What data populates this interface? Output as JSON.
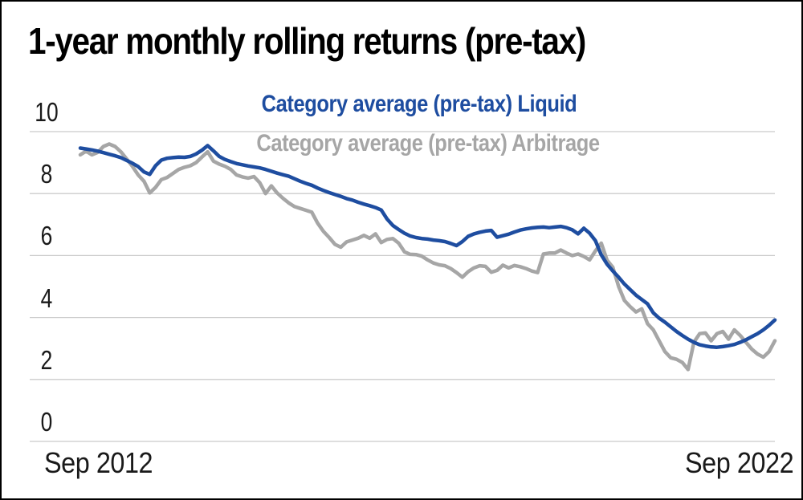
{
  "chart_data": {
    "type": "line",
    "title": "1-year monthly rolling returns (pre-tax)",
    "x_axis": {
      "start_label": "Sep 2012",
      "end_label": "Sep 2022",
      "unit": "month",
      "points": 121
    },
    "y_axis": {
      "ticks": [
        10,
        8,
        6,
        4,
        2,
        0
      ],
      "range": [
        0,
        10
      ],
      "grid": true
    },
    "grid_color": "#cbcbcb",
    "axis_label_color": "#1a1a1a",
    "legend_position": "top-center",
    "legend": [
      {
        "key": "liquid",
        "label": "Category average (pre-tax) Liquid",
        "color": "#1e4da0"
      },
      {
        "key": "arbitrage",
        "label": "Category average (pre-tax) Arbitrage",
        "color": "#a6a6a6"
      }
    ],
    "series": [
      {
        "key": "liquid",
        "name": "Category average (pre-tax) Liquid",
        "color": "#1e4da0",
        "values": [
          9.47,
          9.44,
          9.41,
          9.37,
          9.32,
          9.27,
          9.22,
          9.16,
          9.07,
          8.98,
          8.87,
          8.7,
          8.62,
          8.9,
          9.08,
          9.14,
          9.16,
          9.18,
          9.17,
          9.2,
          9.28,
          9.4,
          9.55,
          9.38,
          9.2,
          9.1,
          9.03,
          8.97,
          8.93,
          8.89,
          8.86,
          8.83,
          8.78,
          8.72,
          8.66,
          8.61,
          8.56,
          8.48,
          8.4,
          8.33,
          8.27,
          8.18,
          8.1,
          8.03,
          7.97,
          7.91,
          7.84,
          7.79,
          7.72,
          7.66,
          7.61,
          7.55,
          7.47,
          7.18,
          6.97,
          6.84,
          6.72,
          6.63,
          6.58,
          6.55,
          6.53,
          6.5,
          6.48,
          6.45,
          6.39,
          6.32,
          6.45,
          6.62,
          6.7,
          6.75,
          6.79,
          6.81,
          6.59,
          6.64,
          6.69,
          6.76,
          6.82,
          6.86,
          6.89,
          6.91,
          6.92,
          6.9,
          6.92,
          6.94,
          6.9,
          6.83,
          6.7,
          6.88,
          6.72,
          6.48,
          6.02,
          5.72,
          5.5,
          5.3,
          5.08,
          4.9,
          4.72,
          4.58,
          4.44,
          4.15,
          3.98,
          3.85,
          3.7,
          3.55,
          3.42,
          3.3,
          3.2,
          3.12,
          3.08,
          3.05,
          3.04,
          3.06,
          3.09,
          3.13,
          3.2,
          3.28,
          3.38,
          3.48,
          3.6,
          3.75,
          3.92
        ]
      },
      {
        "key": "arbitrage",
        "name": "Category average (pre-tax) Arbitrage",
        "color": "#a6a6a6",
        "values": [
          9.25,
          9.37,
          9.25,
          9.33,
          9.52,
          9.6,
          9.52,
          9.35,
          9.12,
          8.88,
          8.6,
          8.4,
          8.02,
          8.2,
          8.45,
          8.52,
          8.65,
          8.78,
          8.85,
          8.9,
          9.0,
          9.18,
          9.35,
          9.05,
          8.95,
          8.88,
          8.78,
          8.6,
          8.54,
          8.5,
          8.55,
          8.35,
          8.0,
          8.25,
          8.02,
          7.85,
          7.7,
          7.58,
          7.52,
          7.46,
          7.4,
          7.05,
          6.78,
          6.58,
          6.36,
          6.27,
          6.44,
          6.5,
          6.56,
          6.65,
          6.56,
          6.7,
          6.42,
          6.52,
          6.55,
          6.4,
          6.12,
          6.04,
          6.03,
          5.98,
          5.86,
          5.76,
          5.7,
          5.67,
          5.58,
          5.45,
          5.3,
          5.48,
          5.6,
          5.67,
          5.65,
          5.46,
          5.52,
          5.69,
          5.6,
          5.68,
          5.64,
          5.58,
          5.5,
          5.45,
          6.05,
          6.08,
          6.08,
          6.18,
          6.08,
          6.0,
          6.05,
          5.97,
          5.86,
          6.15,
          6.4,
          5.85,
          5.62,
          5.0,
          4.55,
          4.35,
          4.18,
          4.28,
          3.8,
          3.6,
          3.25,
          2.9,
          2.7,
          2.65,
          2.55,
          2.32,
          3.2,
          3.48,
          3.5,
          3.25,
          3.48,
          3.55,
          3.3,
          3.6,
          3.42,
          3.2,
          2.98,
          2.82,
          2.72,
          2.9,
          3.25
        ]
      }
    ]
  }
}
